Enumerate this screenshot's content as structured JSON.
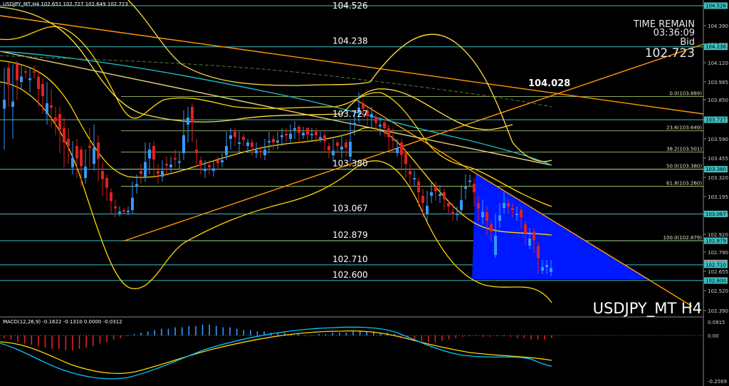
{
  "header": {
    "title": "USDJPY_MT,H4  102.651 102.727 102.649 102.723",
    "macd_label": "MACD(12,26,9) -0.1622 -0.1310 0.0000 -0.0312"
  },
  "info": {
    "time_remain_label": "TIME REMAIN",
    "time_remain_value": "03:36:09",
    "bid_label": "Bid",
    "bid_value": "102.723",
    "symbol_label": "USDJPY_MT H4",
    "annotation_value": "104.028"
  },
  "colors": {
    "background": "#000000",
    "bull_candle": "#3399ff",
    "bear_candle": "#e02020",
    "bollinger": "#ffd700",
    "trendline": "#ff9a00",
    "level_line": "#40c0c0",
    "fib_line": "#bde07a",
    "triangle_fill": "#0018ff",
    "macd_line": "#00c8ff",
    "signal_line": "#ffd700"
  },
  "chart_data": {
    "type": "candlestick",
    "symbol": "USDJPY_MT",
    "timeframe": "H4",
    "ohlc_header": {
      "open": 102.651,
      "high": 102.727,
      "low": 102.649,
      "close": 102.723
    },
    "y_axis_ticks": [
      "104.390",
      "104.255",
      "104.120",
      "103.985",
      "103.850",
      "103.725",
      "103.590",
      "103.455",
      "103.320",
      "103.195",
      "103.060",
      "102.920",
      "102.790",
      "102.655",
      "102.520",
      "102.390"
    ],
    "horizontal_levels": [
      {
        "label": "104.526",
        "value": 104.526,
        "show_text": false
      },
      {
        "label": "104.238",
        "value": 104.238,
        "show_text": true
      },
      {
        "label": "103.727",
        "value": 103.727,
        "show_text": true
      },
      {
        "label": "103.380",
        "value": 103.38,
        "show_text": true
      },
      {
        "label": "103.067",
        "value": 103.067,
        "show_text": true
      },
      {
        "label": "102.879",
        "value": 102.879,
        "show_text": true
      },
      {
        "label": "102.710",
        "value": 102.71,
        "show_text": true
      },
      {
        "label": "102.600",
        "value": 102.6,
        "show_text": true
      }
    ],
    "fibonacci": [
      {
        "label": "0.0(103.889)",
        "value": 103.889
      },
      {
        "label": "23.6(103.649)",
        "value": 103.649
      },
      {
        "label": "38.2(103.501)",
        "value": 103.501
      },
      {
        "label": "50.0(103.380)",
        "value": 103.38
      },
      {
        "label": "61.8(103.260)",
        "value": 103.26
      },
      {
        "label": "100.0(102.879)",
        "value": 102.879
      }
    ],
    "right_tags": [
      "104.526",
      "104.238",
      "103.727",
      "103.380",
      "103.067",
      "102.879",
      "102.723",
      "102.710",
      "102.600"
    ],
    "bid_tag": "102.723",
    "macd": {
      "params": "12,26,9",
      "y_ticks": [
        "0.0915",
        "0.00",
        "-0.2569"
      ],
      "histogram": [
        -0.02,
        -0.03,
        -0.05,
        -0.06,
        -0.07,
        -0.08,
        -0.09,
        -0.1,
        -0.1,
        -0.11,
        -0.11,
        -0.1,
        -0.09,
        -0.08,
        -0.06,
        -0.05,
        -0.03,
        -0.02,
        0.0,
        0.01,
        0.02,
        0.03,
        0.04,
        0.05,
        0.05,
        0.06,
        0.06,
        0.07,
        0.07,
        0.08,
        0.08,
        0.07,
        0.06,
        0.06,
        0.05,
        0.04,
        0.04,
        0.03,
        0.03,
        0.02,
        0.02,
        0.02,
        0.01,
        0.01,
        0.0,
        0.0,
        0.01,
        0.01,
        0.02,
        0.02,
        0.02,
        0.03,
        0.03,
        0.03,
        0.03,
        0.02,
        0.02,
        0.01,
        -0.01,
        -0.02,
        -0.03,
        -0.04,
        -0.05,
        -0.05,
        -0.04,
        -0.03,
        -0.02,
        -0.01,
        0.0,
        0.0,
        -0.01,
        -0.01,
        0.0,
        0.0,
        -0.01,
        -0.02,
        -0.02,
        -0.03,
        -0.03,
        -0.03,
        -0.02
      ]
    }
  }
}
